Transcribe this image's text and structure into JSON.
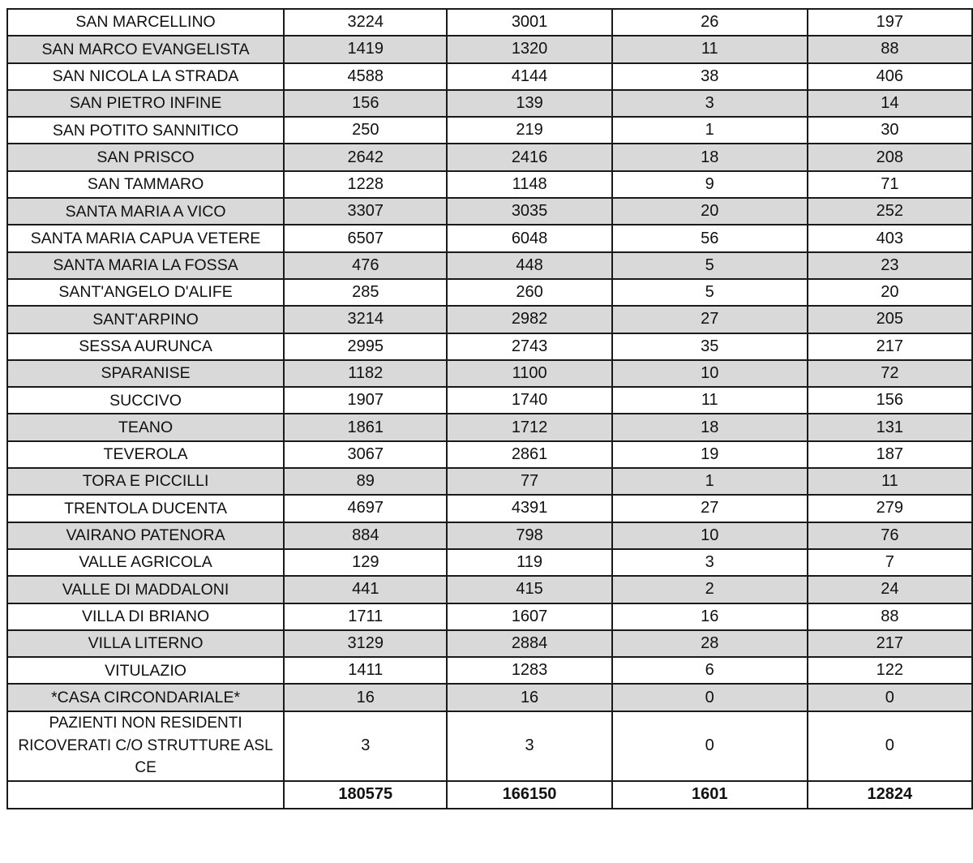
{
  "rows": [
    [
      "SAN MARCELLINO",
      "3224",
      "3001",
      "26",
      "197"
    ],
    [
      "SAN MARCO EVANGELISTA",
      "1419",
      "1320",
      "11",
      "88"
    ],
    [
      "SAN NICOLA LA STRADA",
      "4588",
      "4144",
      "38",
      "406"
    ],
    [
      "SAN PIETRO INFINE",
      "156",
      "139",
      "3",
      "14"
    ],
    [
      "SAN POTITO SANNITICO",
      "250",
      "219",
      "1",
      "30"
    ],
    [
      "SAN PRISCO",
      "2642",
      "2416",
      "18",
      "208"
    ],
    [
      "SAN TAMMARO",
      "1228",
      "1148",
      "9",
      "71"
    ],
    [
      "SANTA MARIA A VICO",
      "3307",
      "3035",
      "20",
      "252"
    ],
    [
      "SANTA MARIA CAPUA VETERE",
      "6507",
      "6048",
      "56",
      "403"
    ],
    [
      "SANTA MARIA LA FOSSA",
      "476",
      "448",
      "5",
      "23"
    ],
    [
      "SANT'ANGELO D'ALIFE",
      "285",
      "260",
      "5",
      "20"
    ],
    [
      "SANT'ARPINO",
      "3214",
      "2982",
      "27",
      "205"
    ],
    [
      "SESSA AURUNCA",
      "2995",
      "2743",
      "35",
      "217"
    ],
    [
      "SPARANISE",
      "1182",
      "1100",
      "10",
      "72"
    ],
    [
      "SUCCIVO",
      "1907",
      "1740",
      "11",
      "156"
    ],
    [
      "TEANO",
      "1861",
      "1712",
      "18",
      "131"
    ],
    [
      "TEVEROLA",
      "3067",
      "2861",
      "19",
      "187"
    ],
    [
      "TORA E PICCILLI",
      "89",
      "77",
      "1",
      "11"
    ],
    [
      "TRENTOLA DUCENTA",
      "4697",
      "4391",
      "27",
      "279"
    ],
    [
      "VAIRANO PATENORA",
      "884",
      "798",
      "10",
      "76"
    ],
    [
      "VALLE AGRICOLA",
      "129",
      "119",
      "3",
      "7"
    ],
    [
      "VALLE DI MADDALONI",
      "441",
      "415",
      "2",
      "24"
    ],
    [
      "VILLA DI BRIANO",
      "1711",
      "1607",
      "16",
      "88"
    ],
    [
      "VILLA LITERNO",
      "3129",
      "2884",
      "28",
      "217"
    ],
    [
      "VITULAZIO",
      "1411",
      "1283",
      "6",
      "122"
    ],
    [
      "*CASA CIRCONDARIALE*",
      "16",
      "16",
      "0",
      "0"
    ],
    [
      "PAZIENTI NON RESIDENTI RICOVERATI C/O STRUTTURE ASL CE",
      "3",
      "3",
      "0",
      "0"
    ]
  ],
  "total": [
    "",
    "180575",
    "166150",
    "1601",
    "12824"
  ],
  "colors": {
    "shade": "#d9d9d9",
    "border": "#1a1a1a"
  }
}
